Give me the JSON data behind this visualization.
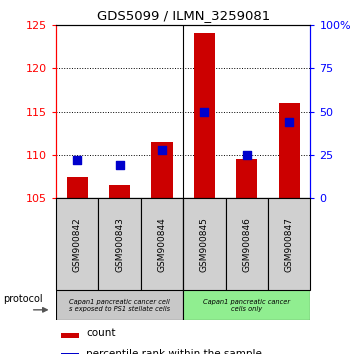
{
  "title": "GDS5099 / ILMN_3259081",
  "samples": [
    "GSM900842",
    "GSM900843",
    "GSM900844",
    "GSM900845",
    "GSM900846",
    "GSM900847"
  ],
  "counts": [
    107.5,
    106.5,
    111.5,
    124.0,
    109.5,
    116.0
  ],
  "percentiles": [
    22.0,
    19.0,
    28.0,
    50.0,
    25.0,
    44.0
  ],
  "ylim_left": [
    105,
    125
  ],
  "ylim_right": [
    0,
    100
  ],
  "yticks_left": [
    105,
    110,
    115,
    120,
    125
  ],
  "yticks_right": [
    0,
    25,
    50,
    75,
    100
  ],
  "ytick_right_labels": [
    "0",
    "25",
    "50",
    "75",
    "100%"
  ],
  "group1_label": "Capan1 pancreatic cancer cell\ns exposed to PS1 stellate cells",
  "group2_label": "Capan1 pancreatic cancer\ncells only",
  "bar_color": "#cc0000",
  "dot_color": "#0000cc",
  "bar_width": 0.5,
  "dot_size": 40,
  "background_color": "#ffffff",
  "legend_count_label": "count",
  "legend_pct_label": "percentile rank within the sample",
  "group1_bg": "#c8c8c8",
  "group2_bg": "#90ee90",
  "sample_box_bg": "#d0d0d0",
  "protocol_label": "protocol"
}
